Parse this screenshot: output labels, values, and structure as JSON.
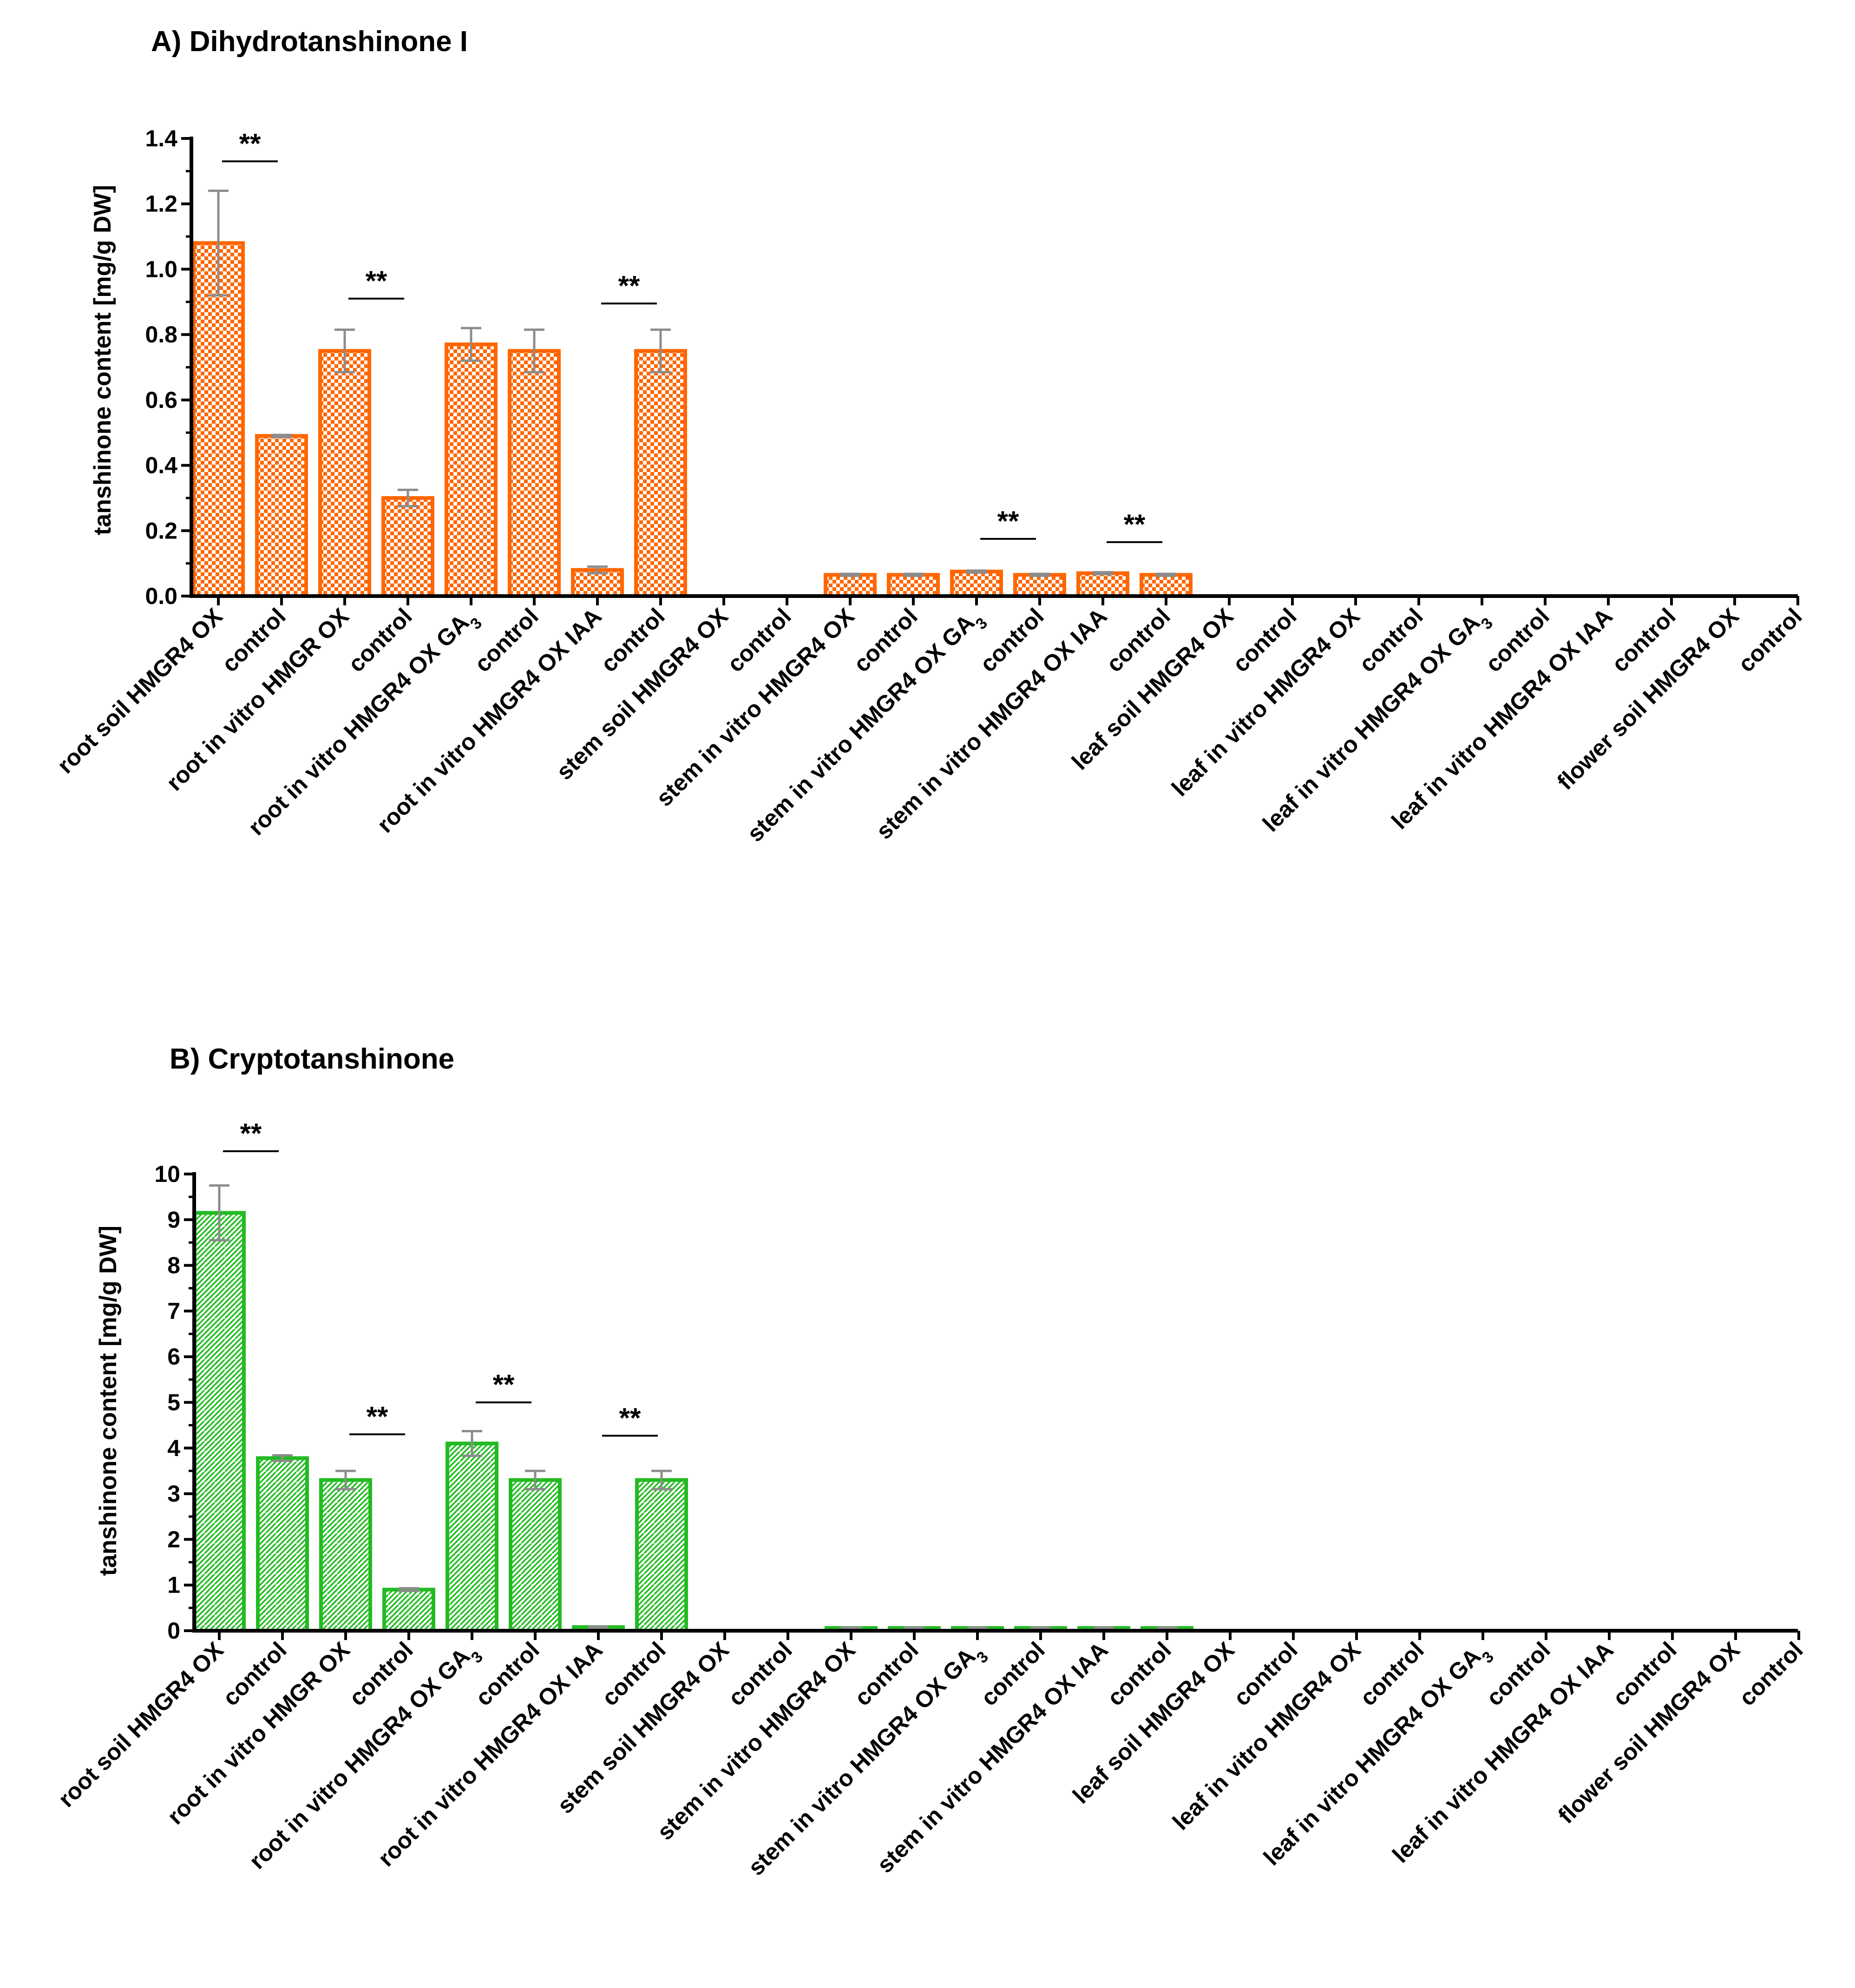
{
  "colors": {
    "panelA": "#ff6600",
    "panelB": "#22bb22",
    "error": "#8c8c8c",
    "axis": "#000000"
  },
  "chart_data": [
    {
      "type": "bar",
      "title": "A) Dihydrotanshinone I",
      "ylabel": "tanshinone content [mg/g DW]",
      "xlabel": "",
      "ylim": [
        0,
        1.4
      ],
      "yticks": [
        "0.0",
        "0.2",
        "0.4",
        "0.6",
        "0.8",
        "1.0",
        "1.2",
        "1.4"
      ],
      "pattern": "checkered",
      "categories": [
        "root soil HMGR4 OX",
        "control",
        "root in vitro HMGR OX",
        "control",
        "root in vitro HMGR4 OX GA3",
        "control",
        "root in vitro HMGR4 OX IAA",
        "control",
        "stem soil HMGR4 OX",
        "control",
        "stem in vitro HMGR4 OX",
        "control",
        "stem in vitro HMGR4 OX GA3",
        "control",
        "stem in vitro HMGR4 OX IAA",
        "control",
        "leaf soil HMGR4 OX",
        "control",
        "leaf in vitro HMGR4 OX",
        "control",
        "leaf in vitro HMGR4 OX GA3",
        "control",
        "leaf in vitro HMGR4 OX IAA",
        "control",
        "flower soil HMGR4 OX",
        "control"
      ],
      "values": [
        1.08,
        0.49,
        0.75,
        0.3,
        0.77,
        0.75,
        0.08,
        0.75,
        0,
        0,
        0.065,
        0.065,
        0.075,
        0.065,
        0.07,
        0.065,
        0,
        0,
        0,
        0,
        0,
        0,
        0,
        0,
        0,
        0
      ],
      "errors": [
        0.16,
        0.003,
        0.065,
        0.025,
        0.05,
        0.065,
        0.01,
        0.065,
        0,
        0,
        0.003,
        0.003,
        0.003,
        0.003,
        0.003,
        0.003,
        0,
        0,
        0,
        0,
        0,
        0,
        0,
        0,
        0,
        0
      ],
      "significance": [
        {
          "from": 0,
          "to": 1,
          "label": "**",
          "level": 1.33
        },
        {
          "from": 2,
          "to": 3,
          "label": "**",
          "level": 0.91
        },
        {
          "from": 6,
          "to": 7,
          "label": "**",
          "level": 0.895
        },
        {
          "from": 12,
          "to": 13,
          "label": "**",
          "level": 0.175
        },
        {
          "from": 14,
          "to": 15,
          "label": "**",
          "level": 0.165
        }
      ]
    },
    {
      "type": "bar",
      "title": "B) Cryptotanshinone",
      "ylabel": "tanshinone content [mg/g DW]",
      "xlabel": "",
      "ylim": [
        0,
        10
      ],
      "yticks": [
        "0",
        "1",
        "2",
        "3",
        "4",
        "5",
        "6",
        "7",
        "8",
        "9",
        "10"
      ],
      "pattern": "hatched",
      "categories": [
        "root soil HMGR4 OX",
        "control",
        "root in vitro HMGR OX",
        "control",
        "root in vitro HMGR4 OX GA3",
        "control",
        "root in vitro HMGR4 OX IAA",
        "control",
        "stem soil HMGR4 OX",
        "control",
        "stem in vitro HMGR4 OX",
        "control",
        "stem in vitro HMGR4 OX GA3",
        "control",
        "stem in vitro HMGR4 OX IAA",
        "control",
        "leaf soil HMGR4 OX",
        "control",
        "leaf in vitro HMGR4 OX",
        "control",
        "leaf in vitro HMGR4 OX GA3",
        "control",
        "leaf in vitro HMGR4 OX IAA",
        "control",
        "flower soil HMGR4 OX",
        "control"
      ],
      "values": [
        9.15,
        3.78,
        3.3,
        0.9,
        4.1,
        3.3,
        0.08,
        3.3,
        0,
        0,
        0.06,
        0.06,
        0.06,
        0.06,
        0.06,
        0.06,
        0,
        0,
        0,
        0,
        0,
        0,
        0,
        0,
        0,
        0
      ],
      "errors": [
        0.6,
        0.06,
        0.2,
        0.03,
        0.27,
        0.2,
        0.01,
        0.2,
        0,
        0,
        0.01,
        0.01,
        0.01,
        0.01,
        0.01,
        0.01,
        0,
        0,
        0,
        0,
        0,
        0,
        0,
        0,
        0,
        0
      ],
      "significance": [
        {
          "from": 0,
          "to": 1,
          "label": "**",
          "level": 10.5
        },
        {
          "from": 2,
          "to": 3,
          "label": "**",
          "level": 4.3
        },
        {
          "from": 4,
          "to": 5,
          "label": "**",
          "level": 5.0
        },
        {
          "from": 6,
          "to": 7,
          "label": "**",
          "level": 4.27
        }
      ]
    }
  ]
}
